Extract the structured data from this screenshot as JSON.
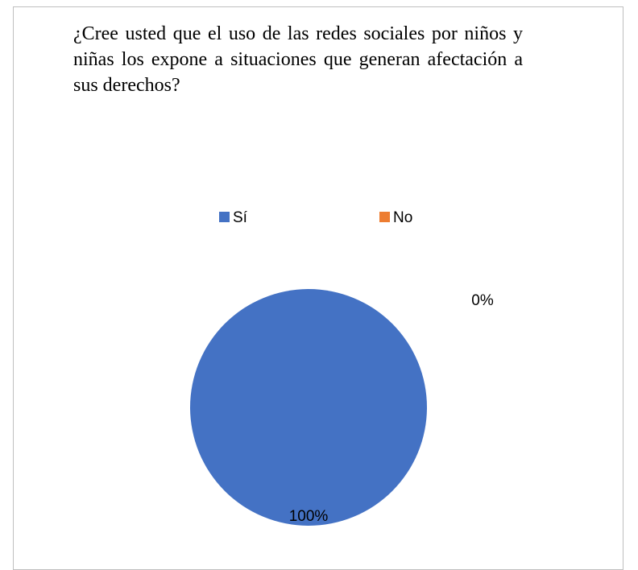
{
  "chart_data": {
    "type": "pie",
    "title": "¿Cree usted que el uso de las redes sociales por niños y niñas los expone a situaciones que generan afectación a sus derechos?",
    "categories": [
      "Sí",
      "No"
    ],
    "values": [
      100,
      0
    ],
    "data_labels": [
      "100%",
      "0%"
    ],
    "colors": [
      "#4472c4",
      "#ed7d31"
    ],
    "legend_position": "top"
  }
}
